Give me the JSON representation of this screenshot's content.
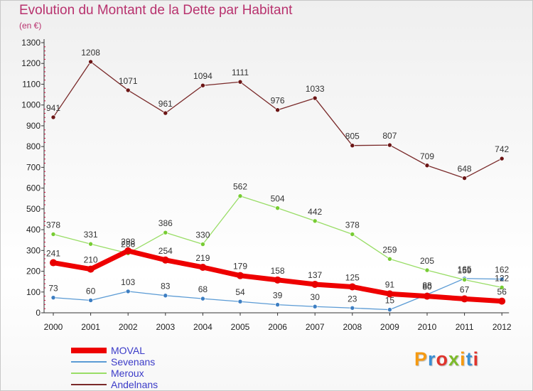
{
  "header": {
    "title": "Evolution du Montant de la Dette par Habitant",
    "subtitle": "(en €)"
  },
  "logo": {
    "text": "Proxiti",
    "colors": [
      "#f59a12",
      "#3a8fd4",
      "#e0342c",
      "#7dbb2a",
      "#f59a12",
      "#3a8fd4",
      "#e0342c"
    ]
  },
  "colors": {
    "title": "#b8326e",
    "axis": "#333333",
    "grid_tick": "#cc0033"
  },
  "chart_data": {
    "type": "line",
    "title": "Evolution du Montant de la Dette par Habitant",
    "subtitle": "(en €)",
    "xlabel": "",
    "ylabel": "",
    "x": [
      "2000",
      "2001",
      "2002",
      "2003",
      "2004",
      "2005",
      "2006",
      "2007",
      "2008",
      "2009",
      "2010",
      "2011",
      "2012"
    ],
    "ylim": [
      0,
      1300
    ],
    "yticks": [
      0,
      100,
      200,
      300,
      400,
      500,
      600,
      700,
      800,
      900,
      1000,
      1100,
      1200,
      1300
    ],
    "grid": false,
    "legend_position": "bottom-left",
    "series": [
      {
        "name": "MOVAL",
        "color": "#ee0000",
        "marker": "#e80000",
        "width": 7,
        "values": [
          241,
          210,
          298,
          254,
          219,
          179,
          158,
          137,
          125,
          91,
          80,
          67,
          56
        ]
      },
      {
        "name": "Sevenans",
        "color": "#5b9bd5",
        "marker": "#3d7ec2",
        "width": 1.3,
        "values": [
          73,
          60,
          103,
          83,
          68,
          54,
          39,
          30,
          23,
          15,
          88,
          165,
          162
        ]
      },
      {
        "name": "Meroux",
        "color": "#99dd66",
        "marker": "#77cc33",
        "width": 1.3,
        "values": [
          378,
          331,
          286,
          386,
          330,
          562,
          504,
          442,
          378,
          259,
          205,
          159,
          122
        ]
      },
      {
        "name": "Andelnans",
        "color": "#7a2a2a",
        "marker": "#6b1515",
        "width": 1.3,
        "values": [
          941,
          1208,
          1071,
          961,
          1094,
          1111,
          976,
          1033,
          805,
          807,
          709,
          648,
          742
        ]
      }
    ]
  }
}
